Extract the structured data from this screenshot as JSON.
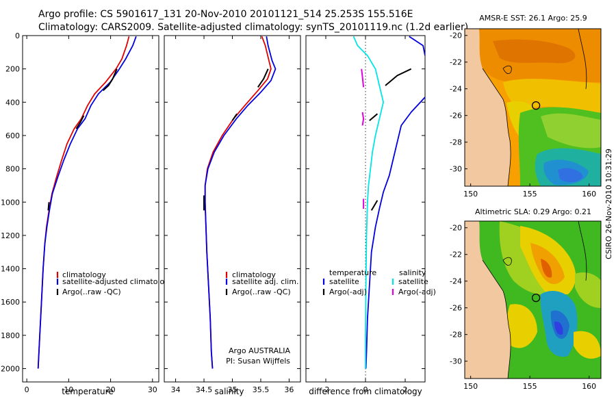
{
  "header": {
    "line1": "Argo profile: CS 5901617_131 20-Nov-2010 20101121_514 25.253S 155.516E",
    "line2": "Climatology: CARS2009. Satellite-adjusted climatology: synTS_20101119.nc (1.2d earlier)"
  },
  "side_label": "CSIRO 26-Nov-2010 10:31:29",
  "colors": {
    "climatology": "#e00000",
    "satellite": "#0000e0",
    "argo": "#000000",
    "sat_sal": "#00e5e5",
    "argo_sal": "#e000e0",
    "land": "#f2c8a0",
    "map_bg": "#ffffff"
  },
  "chart_data": [
    {
      "type": "line",
      "xlabel": "temperature",
      "xlim": [
        -1,
        31.5
      ],
      "ylim": [
        0,
        2080
      ],
      "xticks": [
        0,
        10,
        20,
        30
      ],
      "yticks": [
        0,
        200,
        400,
        600,
        800,
        1000,
        1200,
        1400,
        1600,
        1800,
        2000
      ],
      "legend": [
        "climatology",
        "satellite-adjusted climatology",
        "Argo(..raw -QC)"
      ],
      "series": [
        {
          "name": "climatology",
          "color": "#e00000",
          "points": [
            [
              24.4,
              5
            ],
            [
              23.8,
              60
            ],
            [
              22.7,
              140
            ],
            [
              21.3,
              200
            ],
            [
              18.8,
              280
            ],
            [
              16.2,
              350
            ],
            [
              14.5,
              420
            ],
            [
              13.0,
              500
            ],
            [
              11.3,
              560
            ],
            [
              9.6,
              650
            ],
            [
              8.3,
              750
            ],
            [
              7.1,
              850
            ],
            [
              6.0,
              950
            ],
            [
              5.3,
              1050
            ],
            [
              4.7,
              1150
            ],
            [
              4.3,
              1250
            ],
            [
              3.9,
              1400
            ],
            [
              3.5,
              1600
            ],
            [
              3.1,
              1800
            ],
            [
              2.7,
              2000
            ]
          ]
        },
        {
          "name": "satellite-adjusted climatology",
          "color": "#0000e0",
          "points": [
            [
              26.1,
              5
            ],
            [
              25.3,
              60
            ],
            [
              23.6,
              140
            ],
            [
              22.1,
              200
            ],
            [
              19.9,
              280
            ],
            [
              17.1,
              350
            ],
            [
              15.3,
              420
            ],
            [
              13.9,
              500
            ],
            [
              12.1,
              560
            ],
            [
              10.4,
              650
            ],
            [
              8.8,
              750
            ],
            [
              7.4,
              850
            ],
            [
              6.1,
              950
            ],
            [
              5.4,
              1050
            ],
            [
              4.8,
              1150
            ],
            [
              4.3,
              1250
            ],
            [
              3.9,
              1400
            ],
            [
              3.5,
              1600
            ],
            [
              3.1,
              1800
            ],
            [
              2.7,
              2000
            ]
          ]
        },
        {
          "name": "Argo(..raw -QC)",
          "color": "#000000",
          "segments": [
            [
              [
                21.5,
                200
              ],
              [
                20.5,
                260
              ],
              [
                19.5,
                300
              ],
              [
                18.2,
                330
              ]
            ],
            [
              [
                13.6,
                480
              ],
              [
                12.8,
                520
              ],
              [
                11.8,
                560
              ]
            ],
            [
              [
                5.3,
                1000
              ],
              [
                5.1,
                1050
              ]
            ]
          ]
        }
      ]
    },
    {
      "type": "line",
      "xlabel": "salinity",
      "xlim": [
        33.8,
        36.2
      ],
      "ylim": [
        0,
        2080
      ],
      "xticks": [
        34,
        34.5,
        35,
        35.5,
        36
      ],
      "yticks": [
        0,
        200,
        400,
        600,
        800,
        1000,
        1200,
        1400,
        1600,
        1800,
        2000
      ],
      "legend": [
        "climatology",
        "satellite adj. clim.",
        "Argo(..raw -QC)"
      ],
      "annotation": [
        "Argo AUSTRALIA",
        "PI: Susan Wijffels"
      ],
      "series": [
        {
          "name": "climatology",
          "color": "#e00000",
          "points": [
            [
              35.52,
              5
            ],
            [
              35.58,
              60
            ],
            [
              35.63,
              130
            ],
            [
              35.68,
              200
            ],
            [
              35.62,
              260
            ],
            [
              35.45,
              330
            ],
            [
              35.22,
              420
            ],
            [
              35.02,
              500
            ],
            [
              34.82,
              600
            ],
            [
              34.66,
              700
            ],
            [
              34.56,
              800
            ],
            [
              34.52,
              900
            ],
            [
              34.52,
              1000
            ],
            [
              34.53,
              1100
            ],
            [
              34.55,
              1300
            ],
            [
              34.58,
              1500
            ],
            [
              34.61,
              1700
            ],
            [
              34.63,
              1900
            ],
            [
              34.65,
              2000
            ]
          ]
        },
        {
          "name": "satellite adj. clim.",
          "color": "#0000e0",
          "points": [
            [
              35.6,
              5
            ],
            [
              35.63,
              60
            ],
            [
              35.7,
              150
            ],
            [
              35.76,
              200
            ],
            [
              35.68,
              270
            ],
            [
              35.5,
              340
            ],
            [
              35.27,
              420
            ],
            [
              35.07,
              500
            ],
            [
              34.85,
              600
            ],
            [
              34.68,
              700
            ],
            [
              34.57,
              800
            ],
            [
              34.52,
              900
            ],
            [
              34.52,
              1000
            ],
            [
              34.53,
              1100
            ],
            [
              34.55,
              1300
            ],
            [
              34.58,
              1500
            ],
            [
              34.61,
              1700
            ],
            [
              34.63,
              1900
            ],
            [
              34.65,
              2000
            ]
          ]
        },
        {
          "name": "Argo(..raw -QC)",
          "color": "#000000",
          "segments": [
            [
              [
                35.63,
                200
              ],
              [
                35.55,
                260
              ],
              [
                35.45,
                310
              ]
            ],
            [
              [
                35.08,
                470
              ],
              [
                35.0,
                510
              ]
            ],
            [
              [
                34.5,
                960
              ],
              [
                34.5,
                1050
              ]
            ]
          ]
        }
      ]
    },
    {
      "type": "line",
      "xlabel": "difference from climatology",
      "xlim": [
        -3,
        3
      ],
      "ylim": [
        0,
        2080
      ],
      "xticks": [
        -2,
        0,
        2
      ],
      "yticks": [
        0,
        200,
        400,
        600,
        800,
        1000,
        1200,
        1400,
        1600,
        1800,
        2000
      ],
      "zero_line": 0,
      "legend_left_title": "temperature",
      "legend_right_title": "salinity",
      "legend_left": [
        "satellite",
        "Argo(-adj)"
      ],
      "legend_right": [
        "satellite",
        "Argo(-adj)"
      ],
      "series": [
        {
          "name": "satellite (temperature)",
          "color": "#0000e0",
          "points": [
            [
              2.2,
              5
            ],
            [
              2.9,
              60
            ],
            [
              3.0,
              120
            ]
          ]
        },
        {
          "name": "satellite (temperature) lower",
          "color": "#0000e0",
          "points": [
            [
              3.0,
              370
            ],
            [
              2.3,
              460
            ],
            [
              1.8,
              540
            ],
            [
              1.6,
              640
            ],
            [
              1.4,
              740
            ],
            [
              1.2,
              840
            ],
            [
              0.9,
              940
            ],
            [
              0.7,
              1040
            ],
            [
              0.5,
              1150
            ],
            [
              0.3,
              1300
            ],
            [
              0.2,
              1500
            ],
            [
              0.1,
              1700
            ],
            [
              0.05,
              1900
            ],
            [
              0.02,
              2000
            ]
          ]
        },
        {
          "name": "satellite (salinity)",
          "color": "#00e5e5",
          "points": [
            [
              -0.6,
              5
            ],
            [
              -0.4,
              60
            ],
            [
              0.1,
              120
            ],
            [
              0.5,
              200
            ],
            [
              0.7,
              300
            ],
            [
              0.9,
              400
            ],
            [
              0.7,
              500
            ],
            [
              0.5,
              600
            ],
            [
              0.35,
              700
            ],
            [
              0.25,
              800
            ],
            [
              0.15,
              900
            ],
            [
              0.1,
              1000
            ],
            [
              0.05,
              1200
            ],
            [
              0.02,
              1500
            ],
            [
              0.0,
              1800
            ],
            [
              0.0,
              2000
            ]
          ]
        },
        {
          "name": "Argo(-adj) (temperature)",
          "color": "#000000",
          "segments": [
            [
              [
                2.3,
                200
              ],
              [
                1.6,
                240
              ],
              [
                1.0,
                300
              ]
            ],
            [
              [
                0.6,
                470
              ],
              [
                0.2,
                510
              ]
            ],
            [
              [
                0.6,
                990
              ],
              [
                0.3,
                1050
              ]
            ]
          ]
        },
        {
          "name": "Argo(-adj) (salinity)",
          "color": "#e000e0",
          "segments": [
            [
              [
                -0.2,
                200
              ],
              [
                -0.15,
                250
              ],
              [
                -0.1,
                310
              ]
            ],
            [
              [
                -0.15,
                460
              ],
              [
                -0.1,
                500
              ],
              [
                -0.15,
                540
              ]
            ],
            [
              [
                -0.1,
                980
              ],
              [
                -0.1,
                1040
              ]
            ]
          ]
        }
      ]
    }
  ],
  "maps": [
    {
      "title": "AMSR-E SST: 26.1 Argo: 25.9",
      "xticks": [
        150,
        155,
        160
      ],
      "yticks": [
        -20,
        -22,
        -24,
        -26,
        -28,
        -30
      ],
      "xlim": [
        149.5,
        161
      ],
      "ylim": [
        -31.3,
        -19.5
      ],
      "argo_location": [
        155.516,
        -25.253
      ]
    },
    {
      "title": "Altimetric SLA: 0.29 Argo: 0.21",
      "xticks": [
        150,
        155,
        160
      ],
      "yticks": [
        -20,
        -22,
        -24,
        -26,
        -28,
        -30
      ],
      "xlim": [
        149.5,
        161
      ],
      "ylim": [
        -31.3,
        -19.5
      ],
      "argo_location": [
        155.516,
        -25.253
      ]
    }
  ]
}
